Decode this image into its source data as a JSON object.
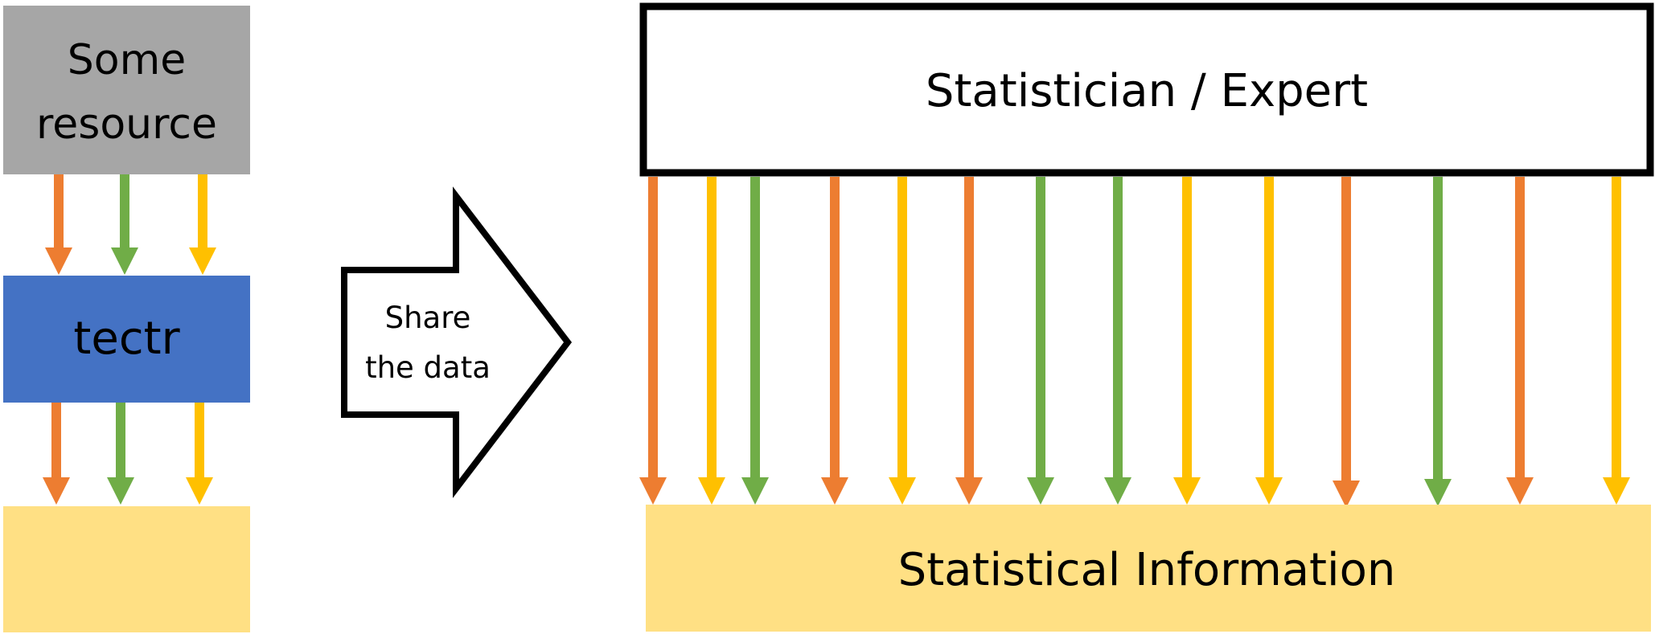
{
  "left": {
    "resource_box": {
      "line1": "Some",
      "line2": "resource",
      "fill": "#a6a6a6"
    },
    "tectr_box": {
      "label": "tectr",
      "fill": "#4472c4"
    },
    "output_box": {
      "fill": "#ffe084"
    },
    "arrow_colors_top": [
      "#ed7d31",
      "#70ad47",
      "#ffc000"
    ],
    "arrow_colors_bottom": [
      "#ed7d31",
      "#70ad47",
      "#ffc000"
    ]
  },
  "share": {
    "line1": "Share",
    "line2": "the data"
  },
  "right": {
    "expert_box": {
      "label": "Statistician / Expert"
    },
    "info_box": {
      "label": "Statistical Information",
      "fill": "#ffe084"
    },
    "arrow_colors": [
      "#ed7d31",
      "#ffc000",
      "#70ad47",
      "#ed7d31",
      "#ffc000",
      "#ed7d31",
      "#70ad47",
      "#70ad47",
      "#ffc000",
      "#ffc000",
      "#ed7d31",
      "#70ad47",
      "#ed7d31",
      "#ffc000"
    ]
  }
}
